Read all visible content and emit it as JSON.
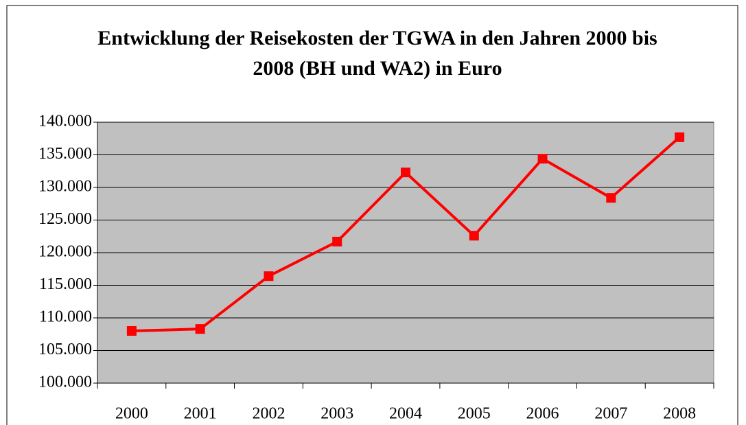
{
  "chart_data": {
    "type": "line",
    "title": "Entwicklung der Reisekosten der TGWA in den Jahren 2000 bis 2008 (BH und WA2) in Euro",
    "categories": [
      "2000",
      "2001",
      "2002",
      "2003",
      "2004",
      "2005",
      "2006",
      "2007",
      "2008"
    ],
    "series": [
      {
        "name": "Reisekosten",
        "color": "#ff0000",
        "values": [
          108000,
          108300,
          116400,
          121700,
          132300,
          122600,
          134400,
          128400,
          137700
        ]
      }
    ],
    "ylim": [
      100000,
      140000
    ],
    "yticks": [
      {
        "value": 100000,
        "label": "100.000"
      },
      {
        "value": 105000,
        "label": "105.000"
      },
      {
        "value": 110000,
        "label": "110.000"
      },
      {
        "value": 115000,
        "label": "115.000"
      },
      {
        "value": 120000,
        "label": "120.000"
      },
      {
        "value": 125000,
        "label": "125.000"
      },
      {
        "value": 130000,
        "label": "130.000"
      },
      {
        "value": 135000,
        "label": "135.000"
      },
      {
        "value": 140000,
        "label": "140.000"
      }
    ],
    "grid": true,
    "legend": false
  }
}
